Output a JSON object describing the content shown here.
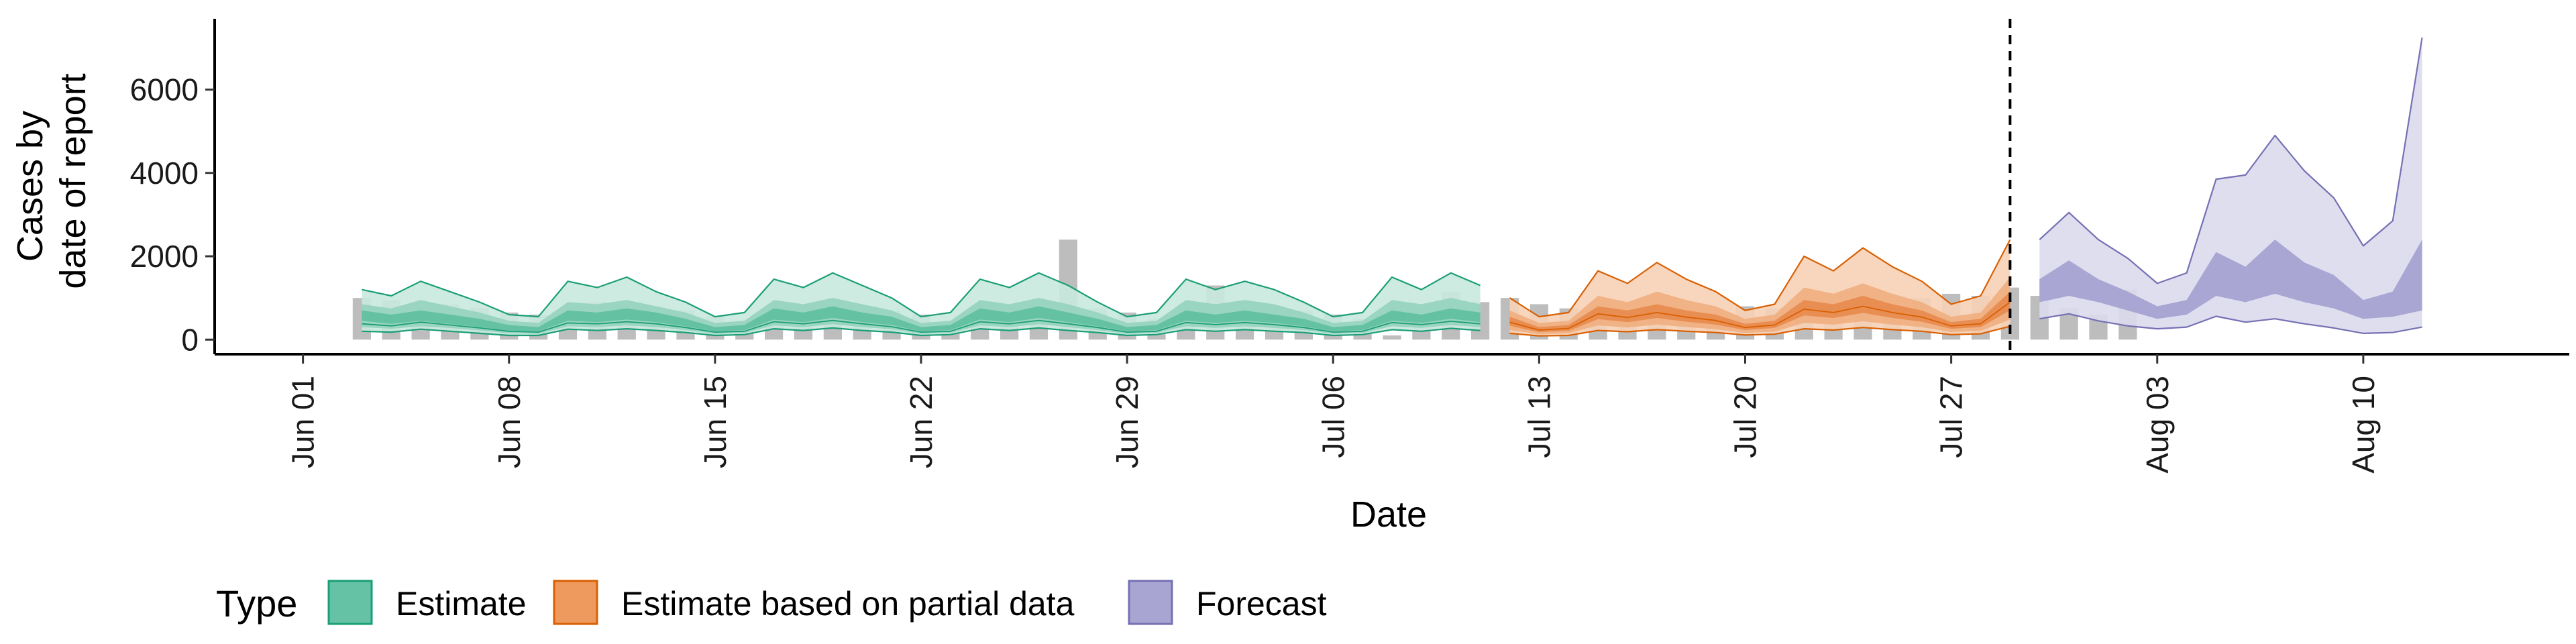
{
  "chart_data": {
    "type": "area",
    "xlabel": "Date",
    "ylabel_lines": [
      "Cases by",
      "date of report"
    ],
    "x_ticks": [
      "2020-06-01",
      "2020-06-08",
      "2020-06-15",
      "2020-06-22",
      "2020-06-29",
      "2020-07-06",
      "2020-07-13",
      "2020-07-20",
      "2020-07-27",
      "2020-08-03",
      "2020-08-10"
    ],
    "x_tick_labels": [
      "Jun 01",
      "Jun 08",
      "Jun 15",
      "Jun 22",
      "Jun 29",
      "Jul 06",
      "Jul 13",
      "Jul 20",
      "Jul 27",
      "Aug 03",
      "Aug 10"
    ],
    "xlim": [
      "2020-05-29",
      "2020-08-17"
    ],
    "y_ticks": [
      0,
      2000,
      4000,
      6000
    ],
    "y_tick_labels": [
      "0",
      "2000",
      "4000",
      "6000"
    ],
    "ylim": [
      -350,
      7700
    ],
    "forecast_line_date": "2020-07-29",
    "legend": {
      "title": "Type",
      "position": "bottom",
      "entries": [
        {
          "label": "Estimate",
          "fill": "#66c2a5",
          "stroke": "#1b9e77"
        },
        {
          "label": "Estimate based on partial data",
          "fill": "#ee9a5f",
          "stroke": "#d95f02"
        },
        {
          "label": "Forecast",
          "fill": "#a9a5d3",
          "stroke": "#7570b3"
        }
      ]
    },
    "colors": {
      "observed_bars": "#bdbdbd",
      "estimate": {
        "outer": "#c8e9dd",
        "mid": "#93d3bd",
        "inner": "#5ebf9d",
        "line": "#1b9e77"
      },
      "partial": {
        "outer": "#f7d2b7",
        "mid": "#f0ae80",
        "inner": "#e8894d",
        "line": "#d95f02"
      },
      "forecast": {
        "outer": "#dcdaed",
        "mid": "#a9a5d3",
        "inner": "#a9a5d3",
        "line": "#7570b3"
      }
    },
    "observed": {
      "start_date": "2020-06-03",
      "values": [
        1000,
        950,
        900,
        850,
        750,
        650,
        600,
        700,
        900,
        850,
        800,
        700,
        550,
        450,
        500,
        700,
        800,
        750,
        700,
        600,
        450,
        400,
        600,
        800,
        2400,
        750,
        650,
        500,
        550,
        1300,
        700,
        650,
        700,
        600,
        500,
        100,
        350,
        1150,
        900,
        1000,
        850,
        750,
        700,
        650,
        600,
        550,
        650,
        800,
        750,
        700,
        650,
        600,
        550,
        1000,
        1100,
        1050,
        1250,
        1050,
        750,
        600,
        1200
      ]
    },
    "estimate": {
      "start_date": "2020-06-03",
      "outer_upper": [
        1200,
        1050,
        1400,
        1150,
        900,
        600,
        550,
        1400,
        1250,
        1500,
        1150,
        900,
        550,
        650,
        1450,
        1250,
        1600,
        1300,
        1000,
        550,
        650,
        1450,
        1250,
        1600,
        1300,
        900,
        550,
        650,
        1450,
        1200,
        1400,
        1200,
        900,
        550,
        650,
        1500,
        1200,
        1600,
        1300
      ],
      "mid_upper": [
        850,
        750,
        950,
        800,
        650,
        450,
        400,
        900,
        850,
        950,
        800,
        650,
        400,
        450,
        950,
        850,
        1000,
        850,
        700,
        400,
        450,
        950,
        850,
        1000,
        850,
        650,
        400,
        450,
        950,
        850,
        950,
        850,
        650,
        400,
        450,
        950,
        850,
        1000,
        850
      ],
      "inner_upper": [
        700,
        600,
        700,
        600,
        500,
        350,
        300,
        700,
        650,
        750,
        650,
        500,
        300,
        350,
        750,
        650,
        800,
        650,
        550,
        300,
        350,
        750,
        650,
        800,
        650,
        500,
        300,
        350,
        700,
        600,
        700,
        600,
        500,
        300,
        350,
        700,
        600,
        750,
        650
      ],
      "inner_lower": [
        450,
        380,
        450,
        380,
        300,
        220,
        200,
        450,
        420,
        480,
        420,
        320,
        200,
        230,
        480,
        420,
        520,
        420,
        350,
        200,
        230,
        480,
        420,
        520,
        420,
        320,
        200,
        230,
        450,
        400,
        450,
        400,
        320,
        200,
        230,
        450,
        400,
        500,
        420
      ],
      "mid_lower": [
        300,
        260,
        320,
        280,
        220,
        150,
        140,
        320,
        300,
        340,
        300,
        230,
        140,
        160,
        340,
        300,
        370,
        300,
        250,
        140,
        160,
        340,
        300,
        370,
        300,
        230,
        140,
        160,
        320,
        280,
        320,
        280,
        230,
        140,
        160,
        320,
        280,
        350,
        300
      ],
      "outer_lower": [
        200,
        180,
        250,
        200,
        150,
        100,
        100,
        250,
        220,
        260,
        220,
        170,
        100,
        120,
        260,
        220,
        280,
        220,
        180,
        100,
        120,
        260,
        220,
        280,
        220,
        170,
        100,
        120,
        240,
        200,
        240,
        200,
        170,
        100,
        120,
        240,
        200,
        270,
        220
      ],
      "median": [
        380,
        330,
        420,
        350,
        280,
        200,
        180,
        400,
        380,
        430,
        380,
        290,
        180,
        200,
        430,
        380,
        460,
        380,
        310,
        180,
        200,
        430,
        380,
        460,
        380,
        290,
        180,
        200,
        410,
        360,
        410,
        360,
        290,
        180,
        200,
        410,
        360,
        440,
        380
      ]
    },
    "partial": {
      "start_date": "2020-07-12",
      "outer_upper": [
        1000,
        550,
        650,
        1650,
        1350,
        1850,
        1450,
        1150,
        700,
        850,
        2000,
        1650,
        2200,
        1750,
        1400,
        850,
        1050,
        2400
      ],
      "mid_upper": [
        700,
        400,
        450,
        1050,
        900,
        1150,
        950,
        800,
        500,
        600,
        1250,
        1100,
        1350,
        1100,
        900,
        550,
        650,
        1500
      ],
      "inner_upper": [
        550,
        300,
        350,
        800,
        700,
        850,
        700,
        600,
        380,
        450,
        950,
        850,
        1050,
        850,
        700,
        420,
        500,
        1150
      ],
      "inner_lower": [
        330,
        180,
        210,
        490,
        420,
        520,
        430,
        360,
        230,
        280,
        580,
        520,
        640,
        520,
        430,
        260,
        300,
        700
      ],
      "mid_lower": [
        230,
        130,
        150,
        340,
        290,
        360,
        300,
        250,
        160,
        190,
        400,
        360,
        440,
        360,
        300,
        180,
        210,
        480
      ],
      "outer_lower": [
        150,
        90,
        100,
        220,
        190,
        240,
        200,
        170,
        110,
        130,
        260,
        230,
        290,
        240,
        200,
        120,
        140,
        320
      ],
      "median": [
        420,
        230,
        270,
        620,
        530,
        650,
        540,
        460,
        290,
        350,
        730,
        650,
        800,
        650,
        540,
        330,
        380,
        900
      ]
    },
    "forecast": {
      "start_date": "2020-07-30",
      "outer_upper": [
        2400,
        3050,
        2400,
        1950,
        1350,
        1600,
        3850,
        3950,
        4900,
        4050,
        3400,
        2250,
        2850,
        7250
      ],
      "mid_upper": [
        1450,
        1900,
        1450,
        1150,
        800,
        950,
        2100,
        1750,
        2400,
        1850,
        1550,
        950,
        1150,
        2400
      ],
      "inner_upper": [
        1450,
        1900,
        1450,
        1150,
        800,
        950,
        2100,
        1750,
        2400,
        1850,
        1550,
        950,
        1150,
        2400
      ],
      "inner_lower": [
        900,
        1050,
        900,
        700,
        500,
        600,
        1050,
        900,
        1100,
        900,
        750,
        500,
        550,
        700
      ],
      "mid_lower": [
        900,
        1050,
        900,
        700,
        500,
        600,
        1050,
        900,
        1100,
        900,
        750,
        500,
        550,
        700
      ],
      "outer_lower": [
        500,
        620,
        450,
        330,
        260,
        300,
        560,
        420,
        500,
        380,
        280,
        150,
        170,
        300
      ]
    }
  }
}
